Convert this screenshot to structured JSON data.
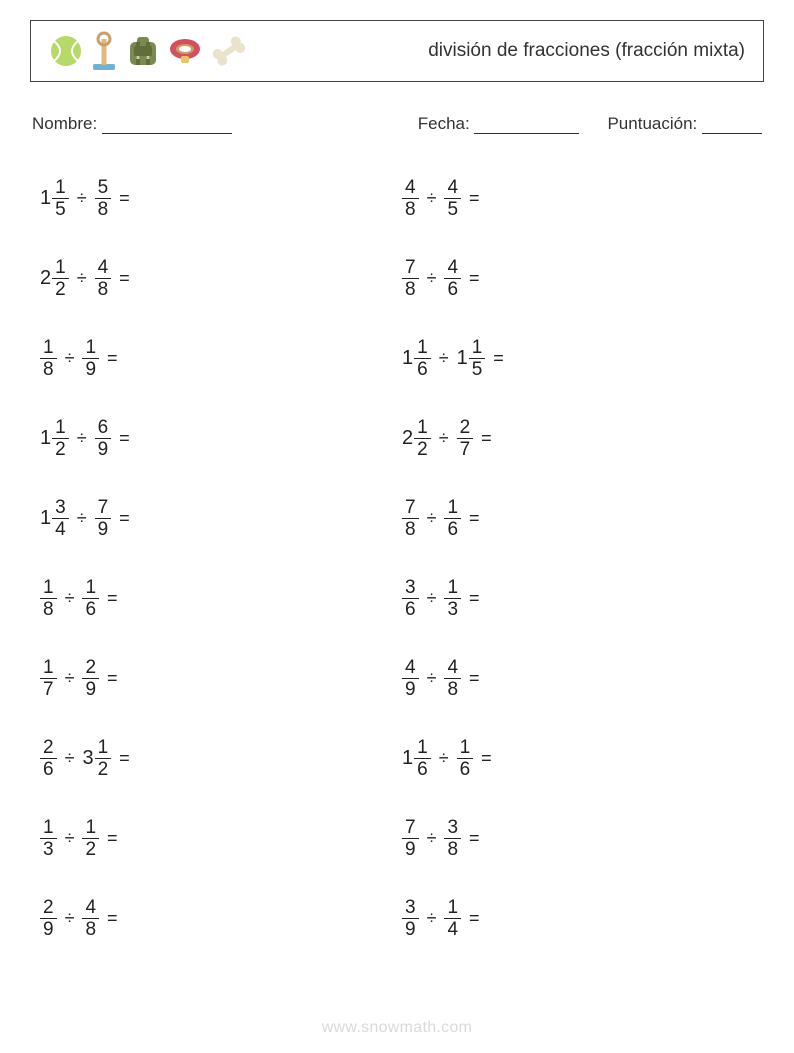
{
  "header": {
    "title": "división de fracciones (fracción mixta)",
    "icon_colors": {
      "ball_fill": "#b6d96a",
      "ball_line": "#ffffff",
      "stand_post": "#e0b97e",
      "stand_base": "#6fb2d6",
      "stand_ring": "#c9a06a",
      "backpack_body": "#7a8a52",
      "backpack_strap": "#5f6e3a",
      "backpack_buckle": "#d6cda0",
      "collar_band": "#d1515d",
      "collar_inner": "#c9a06a",
      "collar_tag": "#e8c36a",
      "bone": "#e9e2cc"
    }
  },
  "labels": {
    "name": "Nombre:",
    "date": "Fecha:",
    "score": "Puntuación:"
  },
  "math": {
    "op": "÷",
    "eq": "="
  },
  "problems": {
    "left": [
      {
        "a_whole": "1",
        "a_num": "1",
        "a_den": "5",
        "b_whole": "",
        "b_num": "5",
        "b_den": "8"
      },
      {
        "a_whole": "2",
        "a_num": "1",
        "a_den": "2",
        "b_whole": "",
        "b_num": "4",
        "b_den": "8"
      },
      {
        "a_whole": "",
        "a_num": "1",
        "a_den": "8",
        "b_whole": "",
        "b_num": "1",
        "b_den": "9"
      },
      {
        "a_whole": "1",
        "a_num": "1",
        "a_den": "2",
        "b_whole": "",
        "b_num": "6",
        "b_den": "9"
      },
      {
        "a_whole": "1",
        "a_num": "3",
        "a_den": "4",
        "b_whole": "",
        "b_num": "7",
        "b_den": "9"
      },
      {
        "a_whole": "",
        "a_num": "1",
        "a_den": "8",
        "b_whole": "",
        "b_num": "1",
        "b_den": "6"
      },
      {
        "a_whole": "",
        "a_num": "1",
        "a_den": "7",
        "b_whole": "",
        "b_num": "2",
        "b_den": "9"
      },
      {
        "a_whole": "",
        "a_num": "2",
        "a_den": "6",
        "b_whole": "3",
        "b_num": "1",
        "b_den": "2"
      },
      {
        "a_whole": "",
        "a_num": "1",
        "a_den": "3",
        "b_whole": "",
        "b_num": "1",
        "b_den": "2"
      },
      {
        "a_whole": "",
        "a_num": "2",
        "a_den": "9",
        "b_whole": "",
        "b_num": "4",
        "b_den": "8"
      }
    ],
    "right": [
      {
        "a_whole": "",
        "a_num": "4",
        "a_den": "8",
        "b_whole": "",
        "b_num": "4",
        "b_den": "5"
      },
      {
        "a_whole": "",
        "a_num": "7",
        "a_den": "8",
        "b_whole": "",
        "b_num": "4",
        "b_den": "6"
      },
      {
        "a_whole": "1",
        "a_num": "1",
        "a_den": "6",
        "b_whole": "1",
        "b_num": "1",
        "b_den": "5"
      },
      {
        "a_whole": "2",
        "a_num": "1",
        "a_den": "2",
        "b_whole": "",
        "b_num": "2",
        "b_den": "7"
      },
      {
        "a_whole": "",
        "a_num": "7",
        "a_den": "8",
        "b_whole": "",
        "b_num": "1",
        "b_den": "6"
      },
      {
        "a_whole": "",
        "a_num": "3",
        "a_den": "6",
        "b_whole": "",
        "b_num": "1",
        "b_den": "3"
      },
      {
        "a_whole": "",
        "a_num": "4",
        "a_den": "9",
        "b_whole": "",
        "b_num": "4",
        "b_den": "8"
      },
      {
        "a_whole": "1",
        "a_num": "1",
        "a_den": "6",
        "b_whole": "",
        "b_num": "1",
        "b_den": "6"
      },
      {
        "a_whole": "",
        "a_num": "7",
        "a_den": "9",
        "b_whole": "",
        "b_num": "3",
        "b_den": "8"
      },
      {
        "a_whole": "",
        "a_num": "3",
        "a_den": "9",
        "b_whole": "",
        "b_num": "1",
        "b_den": "4"
      }
    ]
  },
  "footer": "www.snowmath.com"
}
